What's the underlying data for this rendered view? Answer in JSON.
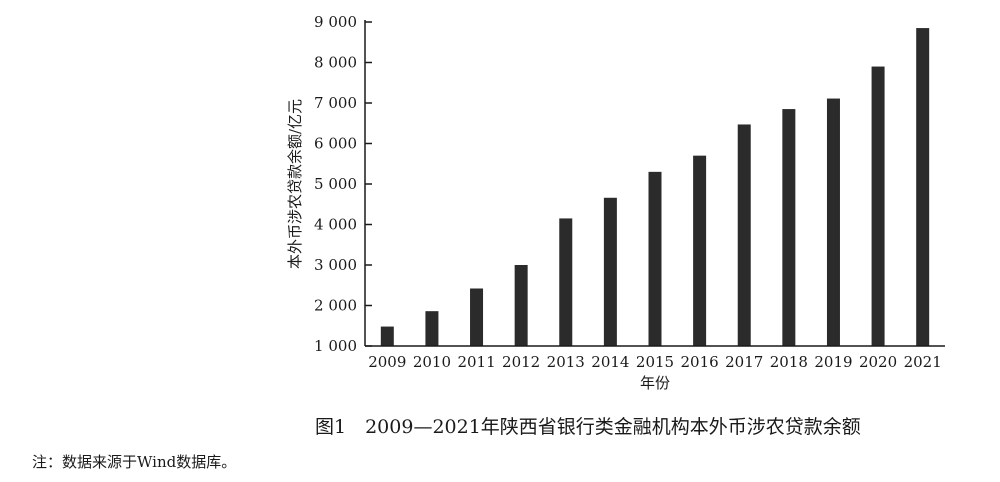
{
  "chart_data": {
    "type": "bar",
    "title": "图1　2009—2021年陕西省银行类金融机构本外币涉农贷款余额",
    "xlabel": "年份",
    "ylabel": "本外币涉农贷款余额/亿元",
    "categories": [
      "2009",
      "2010",
      "2011",
      "2012",
      "2013",
      "2014",
      "2015",
      "2016",
      "2017",
      "2018",
      "2019",
      "2020",
      "2021"
    ],
    "values": [
      1480,
      1860,
      2420,
      3000,
      4150,
      4660,
      5300,
      5700,
      6470,
      6850,
      7110,
      7900,
      8850
    ],
    "ylim": [
      1000,
      9000
    ],
    "yticks": [
      1000,
      2000,
      3000,
      4000,
      5000,
      6000,
      7000,
      8000,
      9000
    ],
    "ytick_labels": [
      "1 000",
      "2 000",
      "3 000",
      "4 000",
      "5 000",
      "6 000",
      "7 000",
      "8 000",
      "9 000"
    ],
    "grid": false,
    "legend": "none"
  },
  "note": "注：数据来源于Wind数据库。",
  "colors": {
    "bar": "#2b2b2b",
    "axis": "#1a1a1a"
  }
}
